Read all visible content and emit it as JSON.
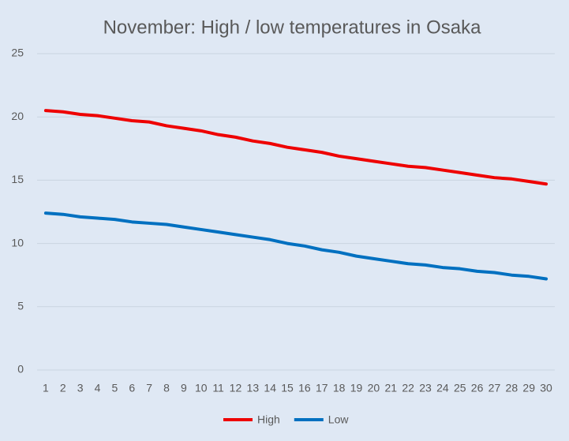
{
  "chart_data": {
    "type": "line",
    "title": "November: High / low temperatures in Osaka",
    "categories": [
      "1",
      "2",
      "3",
      "4",
      "5",
      "6",
      "7",
      "8",
      "9",
      "10",
      "11",
      "12",
      "13",
      "14",
      "15",
      "16",
      "17",
      "18",
      "19",
      "20",
      "21",
      "22",
      "23",
      "24",
      "25",
      "26",
      "27",
      "28",
      "29",
      "30"
    ],
    "series": [
      {
        "name": "High",
        "color": "#ee0000",
        "values": [
          20.5,
          20.4,
          20.2,
          20.1,
          19.9,
          19.7,
          19.6,
          19.3,
          19.1,
          18.9,
          18.6,
          18.4,
          18.1,
          17.9,
          17.6,
          17.4,
          17.2,
          16.9,
          16.7,
          16.5,
          16.3,
          16.1,
          16.0,
          15.8,
          15.6,
          15.4,
          15.2,
          15.1,
          14.9,
          14.7
        ]
      },
      {
        "name": "Low",
        "color": "#0070c0",
        "values": [
          12.4,
          12.3,
          12.1,
          12.0,
          11.9,
          11.7,
          11.6,
          11.5,
          11.3,
          11.1,
          10.9,
          10.7,
          10.5,
          10.3,
          10.0,
          9.8,
          9.5,
          9.3,
          9.0,
          8.8,
          8.6,
          8.4,
          8.3,
          8.1,
          8.0,
          7.8,
          7.7,
          7.5,
          7.4,
          7.2
        ]
      }
    ],
    "ylim": [
      0,
      25
    ],
    "yticks": [
      0,
      5,
      10,
      15,
      20,
      25
    ],
    "grid": true,
    "legend": "bottom"
  }
}
